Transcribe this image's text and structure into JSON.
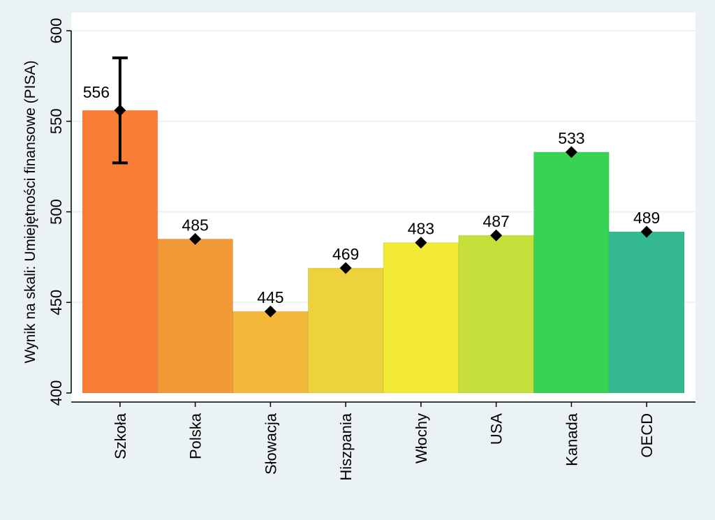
{
  "chart_data": {
    "type": "bar",
    "title": "",
    "xlabel": "",
    "ylabel": "Wynik na skali: Umiejętności finansowe (PISA)",
    "categories": [
      "Szkoła",
      "Polska",
      "Słowacja",
      "Hiszpania",
      "Włochy",
      "USA",
      "Kanada",
      "OECD"
    ],
    "values": [
      556,
      485,
      445,
      469,
      483,
      487,
      533,
      489
    ],
    "value_labels": [
      "556",
      "485",
      "445",
      "469",
      "483",
      "487",
      "533",
      "489"
    ],
    "error_bar": {
      "category": "Szkoła",
      "low": 527,
      "high": 585
    },
    "ylim": [
      400,
      600
    ],
    "yticks": [
      400,
      450,
      500,
      550,
      600
    ],
    "grid": true,
    "background": "#eaf2f3",
    "plot_background": "#ffffff",
    "grid_color": "#eaf2f3",
    "colors": [
      "#f97e35",
      "#f29a38",
      "#f3b83a",
      "#eed23d",
      "#f3ea35",
      "#c6df3a",
      "#38d354",
      "#34b892"
    ]
  }
}
